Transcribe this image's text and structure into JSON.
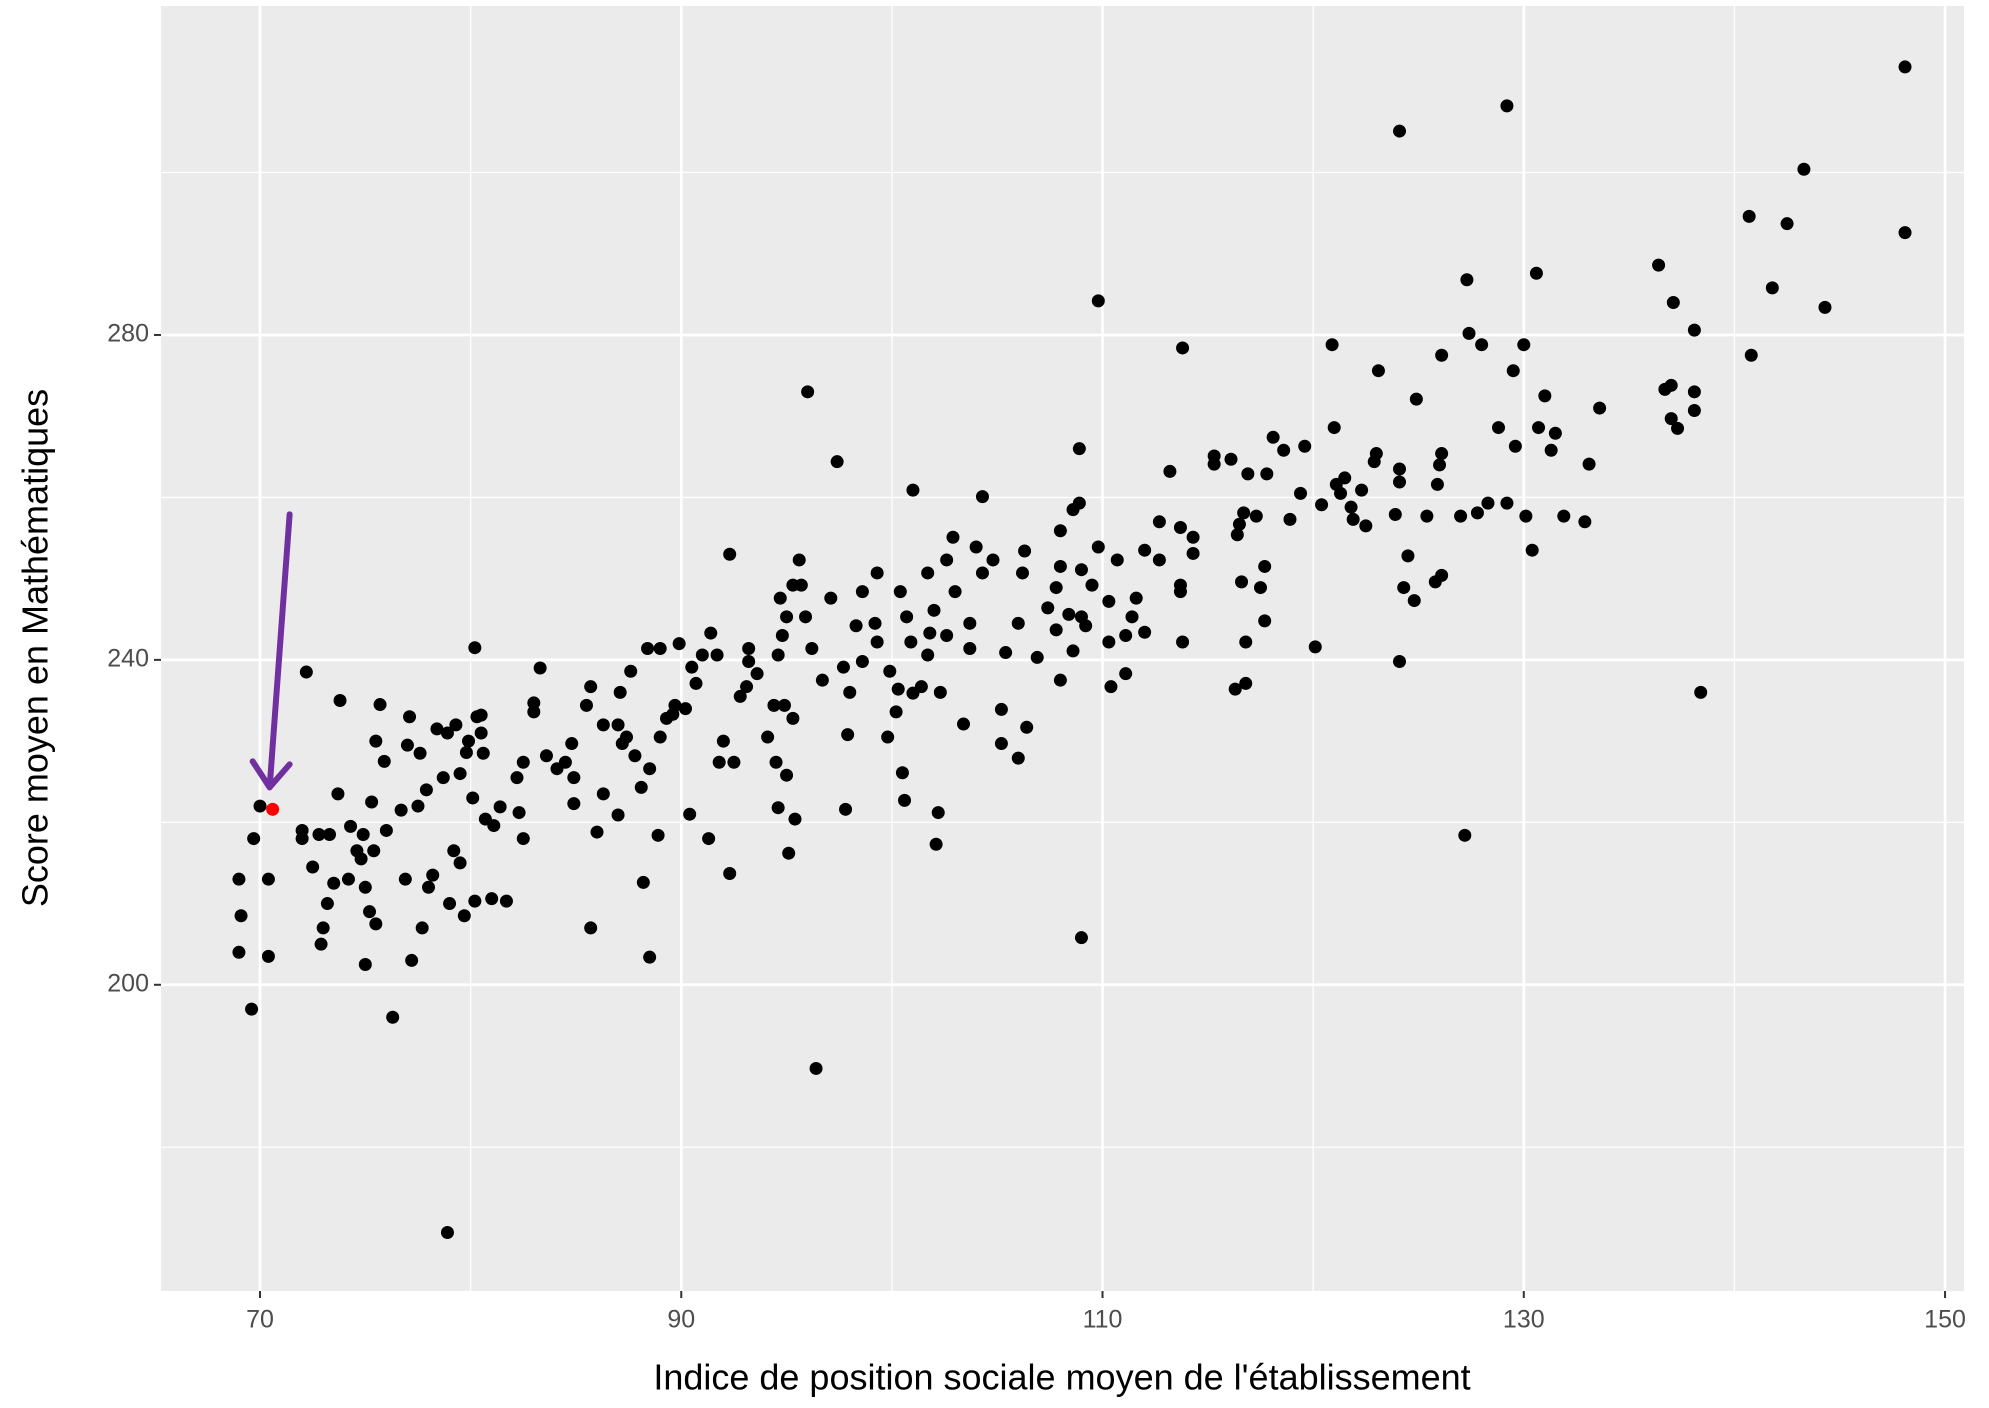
{
  "chart_data": {
    "type": "scatter",
    "xlabel": "Indice de position sociale moyen de l'établissement",
    "ylabel": "Score moyen en Mathématiques",
    "xlim": [
      65.3,
      150.9
    ],
    "ylim": [
      162.3,
      320.5
    ],
    "xticks": [
      70,
      90,
      110,
      130,
      150
    ],
    "yticks": [
      200,
      240,
      280
    ],
    "xminorticks": [
      80,
      100,
      120,
      140
    ],
    "yminorticks": [
      180,
      220,
      260,
      300
    ],
    "grid": true,
    "color": "#000000",
    "x": [
      69.0,
      69.1,
      69.0,
      69.6,
      69.7,
      70.0,
      70.4,
      70.4,
      72.2,
      72.0,
      72.0,
      72.5,
      72.8,
      73.0,
      72.9,
      73.2,
      73.5,
      73.3,
      73.7,
      73.8,
      74.2,
      74.3,
      74.6,
      74.9,
      74.8,
      75.0,
      75.0,
      75.2,
      75.3,
      75.4,
      75.5,
      75.5,
      75.7,
      75.9,
      76.0,
      76.3,
      76.7,
      76.9,
      77.1,
      77.0,
      77.2,
      77.5,
      77.6,
      77.7,
      77.9,
      78.0,
      78.2,
      78.4,
      78.7,
      78.9,
      79.0,
      79.2,
      79.3,
      79.5,
      79.5,
      79.7,
      79.9,
      80.1,
      80.3,
      80.2,
      80.5,
      78.9,
      80.6,
      124.1,
      129.2,
      148.1,
      143.3,
      142.5,
      140.7,
      148.1,
      136.4,
      137.1,
      138.1,
      141.8,
      144.3,
      140.8,
      138.4,
      127.2,
      124.1,
      120.1,
      109.8,
      109,
      127.3,
      130.6,
      127.4,
      128,
      129.5,
      130,
      120.9,
      113.8,
      123.1,
      124.9,
      126.1,
      131,
      133.6,
      136.7,
      137,
      138.1,
      138.1,
      137,
      137.3,
      128.8,
      129.6,
      130.7,
      131.3,
      131.5,
      133.1,
      132.9,
      131.9,
      130.1,
      130.4,
      129.2,
      128.3,
      127.8,
      127,
      126,
      126.1,
      125.9,
      125.4,
      126.1,
      125.8,
      124.8,
      124.5,
      124.3,
      123.9,
      124.1,
      124.1,
      123,
      122.9,
      121.5,
      121.1,
      121.3,
      121.8,
      121.9,
      122.5,
      122.3,
      121,
      120.4,
      119.4,
      119.6,
      118.6,
      118.1,
      117.8,
      118.9,
      117.3,
      116.9,
      116.1,
      115.3,
      115.3,
      116.7,
      116.5,
      116.4,
      117.7,
      117.5,
      117.7,
      116.8,
      116.6,
      116.8,
      116.3,
      114.3,
      114.3,
      113.7,
      113.2,
      112.7,
      112.7,
      112,
      113.7,
      113.7,
      113.8,
      111.6,
      111.4,
      112,
      111.1,
      111.1,
      110.7,
      110.3,
      110.3,
      110.4,
      109.8,
      109.5,
      109,
      109.2,
      108.9,
      108.9,
      108.6,
      108,
      108,
      107.8,
      107.8,
      108,
      108.6,
      108.4,
      109,
      107.4,
      106.9,
      106.3,
      106.2,
      106,
      106.4,
      106,
      105.4,
      105.2,
      105.2,
      104.8,
      104.3,
      104.3,
      104,
      103.7,
      103.7,
      103.4,
      102.9,
      102.6,
      103,
      102.6,
      102.3,
      101.8,
      102,
      101.7,
      101.7,
      101.4,
      101,
      100.9,
      100.7,
      100.4,
      100.3,
      99.9,
      100.2,
      99.8,
      99.3,
      99.2,
      98.6,
      98.6,
      98.3,
      98,
      97.9,
      97.7,
      97.1,
      96.7,
      96.2,
      95.9,
      95.7,
      95.3,
      95,
      94.8,
      94.6,
      94.4,
      94.1,
      94.9,
      94.5,
      95.3,
      95,
      93.6,
      93.2,
      93.1,
      92.8,
      92,
      91.4,
      91.7,
      92.5,
      91.8,
      91,
      90.7,
      90.2,
      89.7,
      89.3,
      89,
      88.5,
      88.1,
      87.8,
      87.4,
      87,
      87.1,
      86.3,
      85.7,
      85.5,
      84.8,
      84.5,
      84.9,
      84.1,
      83.6,
      83,
      82.5,
      82.3,
      82.2,
      81.4,
      81.1,
      80.7,
      80.5,
      79.8,
      80.2,
      81,
      81.7,
      84.9,
      86.3,
      87,
      87.2,
      90.5,
      89.6,
      95.1,
      95.4,
      94.6,
      97.8,
      96.4,
      96,
      97.4,
      99.3,
      101,
      102.2,
      102.1,
      100.6,
      100.5,
      92.3,
      92.3,
      91.3,
      90.4,
      88.9,
      88.2,
      88.5,
      85.7,
      86,
      83,
      83.3,
      82.5,
      87.6,
      88.4,
      89,
      89.9,
      93.2,
      94.7,
      95.6
    ],
    "y": [
      213,
      208.5,
      204,
      197,
      218,
      222,
      213,
      203.5,
      238.5,
      219,
      218,
      214.5,
      218.5,
      207,
      205,
      210,
      212.5,
      218.5,
      223.5,
      235,
      213,
      219.5,
      216.5,
      218.5,
      215.5,
      212,
      202.5,
      209,
      222.5,
      216.5,
      207.5,
      230,
      234.5,
      227.5,
      219,
      196,
      221.5,
      213,
      233,
      229.5,
      203,
      222,
      228.5,
      207,
      224,
      212,
      213.5,
      231.5,
      225.5,
      231,
      210,
      216.5,
      232,
      215,
      226,
      208.5,
      230,
      223,
      233,
      241.5,
      231,
      169.5,
      228.5,
      305.1,
      308.2,
      313,
      300.4,
      293.7,
      294.6,
      292.6,
      288.6,
      284,
      280.6,
      285.8,
      283.4,
      277.5,
      236,
      218.4,
      239.8,
      241.6,
      284.2,
      205.8,
      286.8,
      287.6,
      280.2,
      278.8,
      275.6,
      278.8,
      278.8,
      278.4,
      275.6,
      272.1,
      277.5,
      272.5,
      271,
      273.3,
      273.8,
      273,
      270.7,
      269.7,
      268.5,
      268.6,
      266.3,
      268.6,
      265.8,
      267.9,
      264.1,
      257,
      257.7,
      257.7,
      253.5,
      259.3,
      259.3,
      258.1,
      257.7,
      264,
      265.4,
      261.6,
      257.7,
      250.4,
      249.6,
      247.3,
      252.8,
      248.9,
      257.9,
      261.9,
      263.5,
      265.4,
      264.4,
      262.4,
      261.6,
      260.5,
      258.8,
      257.3,
      256.5,
      260.9,
      268.6,
      259.1,
      260.5,
      266.3,
      265.8,
      267.4,
      262.9,
      257.3,
      257.7,
      262.9,
      264.7,
      265.1,
      264.1,
      258.1,
      256.7,
      255.4,
      251.5,
      248.9,
      244.8,
      242.2,
      249.6,
      237.1,
      236.4,
      253.1,
      255.1,
      256.3,
      263.2,
      257,
      252.3,
      253.5,
      249.2,
      248.4,
      242.2,
      247.6,
      245.3,
      243.4,
      243,
      238.3,
      252.3,
      247.2,
      242.2,
      236.7,
      253.9,
      249.2,
      251.1,
      244.2,
      259.3,
      266,
      258.5,
      255.9,
      251.5,
      248.9,
      243.7,
      237.5,
      241.1,
      245.6,
      245.3,
      246.4,
      240.3,
      253.4,
      250.7,
      244.5,
      231.7,
      227.9,
      240.9,
      233.9,
      229.7,
      252.3,
      260.1,
      250.7,
      253.9,
      241.4,
      244.5,
      232.1,
      255.1,
      252.3,
      248.4,
      243,
      236,
      243.3,
      246.1,
      250.7,
      240.6,
      236.7,
      235.9,
      242.2,
      245.3,
      248.4,
      236.4,
      238.6,
      233.6,
      230.5,
      242.2,
      244.5,
      248.4,
      239.8,
      244.2,
      236,
      230.8,
      239.1,
      247.6,
      237.5,
      241.4,
      245.3,
      249.2,
      249.2,
      245.3,
      243,
      240.6,
      234.4,
      230.5,
      234.4,
      227.4,
      232.8,
      225.8,
      238.3,
      239.8,
      236.7,
      235.5,
      230,
      243.3,
      240.6,
      227.4,
      227.4,
      240.6,
      237.1,
      234,
      234.4,
      232.8,
      230.5,
      226.6,
      224.3,
      228.2,
      230.5,
      232,
      236,
      232,
      236.7,
      234.4,
      229.7,
      227.4,
      225.5,
      226.6,
      228.2,
      233.6,
      227.4,
      221.2,
      225.5,
      221.9,
      219.6,
      220.4,
      233.2,
      228.6,
      210.3,
      210.6,
      210.3,
      222.3,
      223.5,
      220.9,
      229.7,
      239.1,
      233.3,
      216.2,
      220.4,
      221.8,
      221.6,
      189.7,
      273,
      264.4,
      250.7,
      260.9,
      221.2,
      217.3,
      222.7,
      226.1,
      213.7,
      253,
      218,
      221,
      218.4,
      212.6,
      203.4,
      207,
      218.8,
      234.7,
      239,
      218,
      238.6,
      241.4,
      241.4,
      242,
      241.4,
      247.6,
      252.3
    ],
    "highlight": {
      "x": 70.6,
      "y": 221.6,
      "color": "#ff0000"
    },
    "arrow_color": "#7030a0"
  }
}
